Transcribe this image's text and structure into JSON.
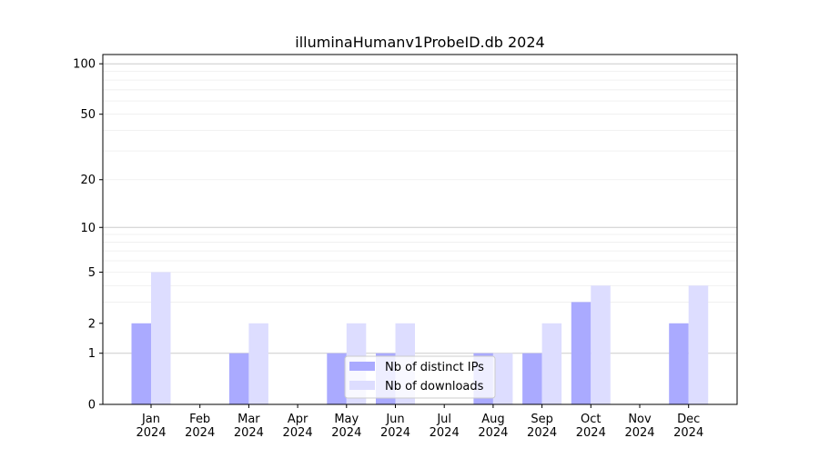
{
  "chart_data": {
    "type": "bar",
    "title": "illuminaHumanv1ProbeID.db 2024",
    "categories": [
      "Jan\n2024",
      "Feb\n2024",
      "Mar\n2024",
      "Apr\n2024",
      "May\n2024",
      "Jun\n2024",
      "Jul\n2024",
      "Aug\n2024",
      "Sep\n2024",
      "Oct\n2024",
      "Nov\n2024",
      "Dec\n2024"
    ],
    "series": [
      {
        "name": "Nb of distinct IPs",
        "color": "#aaaaff",
        "values": [
          2,
          0,
          1,
          0,
          1,
          1,
          0,
          1,
          1,
          3,
          0,
          2
        ]
      },
      {
        "name": "Nb of downloads",
        "color": "#ddddff",
        "values": [
          5,
          0,
          2,
          0,
          2,
          2,
          0,
          1,
          2,
          4,
          0,
          4
        ]
      }
    ],
    "yscale": "log(1+y)",
    "yticks": [
      0,
      1,
      2,
      5,
      10,
      20,
      50,
      100
    ],
    "ylim": [
      0,
      114
    ],
    "xlabel": "",
    "ylabel": "",
    "grid": true,
    "legend": "lower-center"
  }
}
